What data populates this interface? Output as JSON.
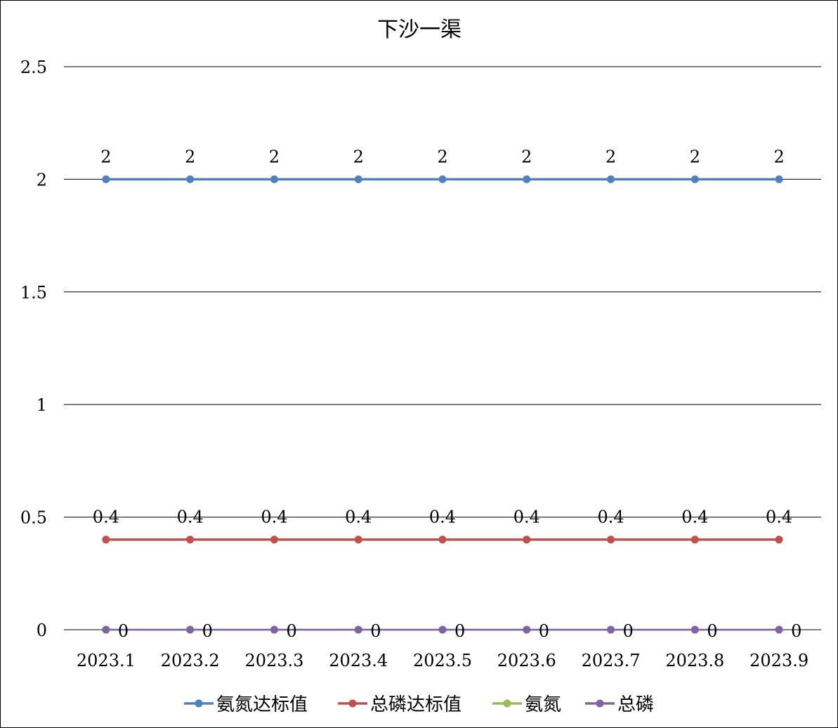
{
  "chart_data": {
    "type": "line",
    "title": "下沙一渠",
    "xlabel": "",
    "ylabel": "",
    "categories": [
      "2023.1",
      "2023.2",
      "2023.3",
      "2023.4",
      "2023.5",
      "2023.6",
      "2023.7",
      "2023.8",
      "2023.9"
    ],
    "ylim": [
      0,
      2.5
    ],
    "yticks": [
      "0",
      "0.5",
      "1",
      "1.5",
      "2",
      "2.5"
    ],
    "grid": true,
    "legend_position": "bottom",
    "series": [
      {
        "name": "氨氮达标值",
        "color": "#4f81bd",
        "values": [
          2,
          2,
          2,
          2,
          2,
          2,
          2,
          2,
          2
        ],
        "labels": [
          "2",
          "2",
          "2",
          "2",
          "2",
          "2",
          "2",
          "2",
          "2"
        ],
        "label_position": "above"
      },
      {
        "name": "总磷达标值",
        "color": "#c0504d",
        "values": [
          0.4,
          0.4,
          0.4,
          0.4,
          0.4,
          0.4,
          0.4,
          0.4,
          0.4
        ],
        "labels": [
          "0.4",
          "0.4",
          "0.4",
          "0.4",
          "0.4",
          "0.4",
          "0.4",
          "0.4",
          "0.4"
        ],
        "label_position": "above"
      },
      {
        "name": "氨氮",
        "color": "#9bbb59",
        "values": [
          0,
          0,
          0,
          0,
          0,
          0,
          0,
          0,
          0
        ],
        "labels": [],
        "label_position": "none"
      },
      {
        "name": "总磷",
        "color": "#8064a2",
        "values": [
          0,
          0,
          0,
          0,
          0,
          0,
          0,
          0,
          0
        ],
        "labels": [
          "0",
          "0",
          "0",
          "0",
          "0",
          "0",
          "0",
          "0",
          "0"
        ],
        "label_position": "right"
      }
    ]
  }
}
